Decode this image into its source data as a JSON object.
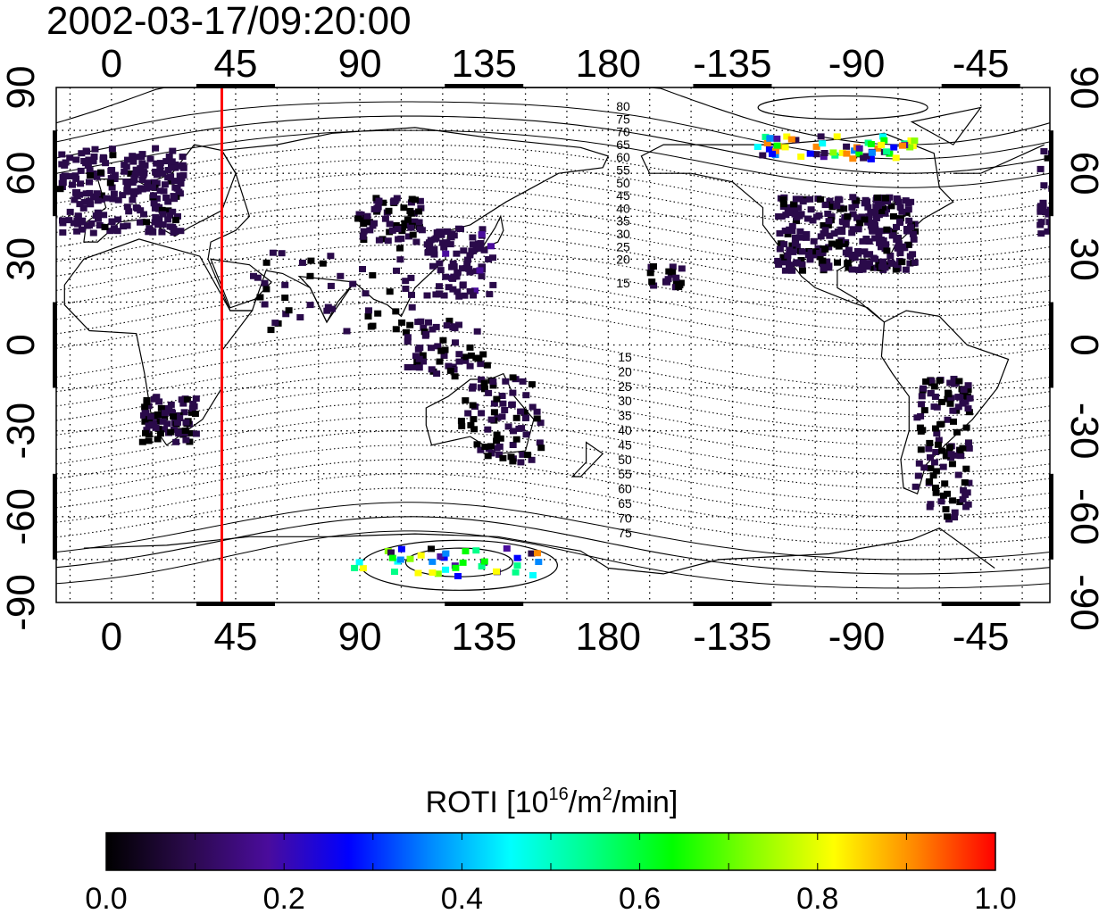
{
  "title": "2002-03-17/09:20:00",
  "map": {
    "top_ticks": [
      "0",
      "45",
      "90",
      "135",
      "180",
      "-135",
      "-90",
      "-45"
    ],
    "bottom_ticks": [
      "0",
      "45",
      "90",
      "135",
      "180",
      "-135",
      "-90",
      "-45"
    ],
    "left_ticks": [
      "90",
      "60",
      "30",
      "0",
      "-30",
      "-60",
      "-90"
    ],
    "right_ticks": [
      "90",
      "60",
      "30",
      "0",
      "-30",
      "-60",
      "-90"
    ],
    "marker_longitude": 40,
    "marker_color": "#ff0000",
    "north_contour_labels": [
      "80",
      "75",
      "70",
      "65",
      "60",
      "55",
      "50",
      "45",
      "40",
      "35",
      "30",
      "25",
      "20",
      "15"
    ],
    "south_contour_labels": [
      "15",
      "20",
      "25",
      "30",
      "35",
      "40",
      "45",
      "50",
      "55",
      "60",
      "65",
      "70",
      "75"
    ]
  },
  "colorbar": {
    "title_prefix": "ROTI  [10",
    "title_sup1": "16",
    "title_mid": "/m",
    "title_sup2": "2",
    "title_suffix": "/min]",
    "tick_labels": [
      "0.0",
      "0.2",
      "0.4",
      "0.6",
      "0.8",
      "1.0"
    ],
    "min": 0.0,
    "max": 1.0,
    "colormap": [
      "#000000",
      "#2a0a4a",
      "#4a0c9c",
      "#0000ff",
      "#0088ff",
      "#00ffff",
      "#00ff88",
      "#00ff00",
      "#88ff00",
      "#ffff00",
      "#ff8800",
      "#ff0000"
    ]
  }
}
